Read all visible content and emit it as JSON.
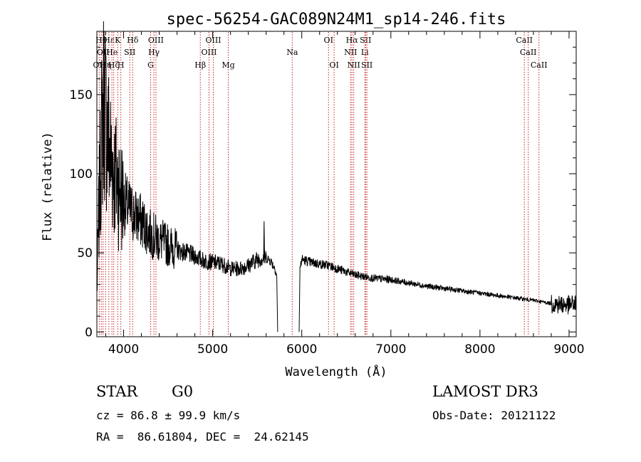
{
  "chart_data": {
    "type": "line",
    "title": "spec-56254-GAC089N24M1_sp14-246.fits",
    "xlabel": "Wavelength (Å)",
    "ylabel": "Flux (relative)",
    "xlim": [
      3700,
      9080
    ],
    "ylim": [
      -3,
      190
    ],
    "xticks": [
      4000,
      5000,
      6000,
      7000,
      8000,
      9000
    ],
    "yticks": [
      0,
      50,
      100,
      150
    ],
    "series": [
      {
        "name": "spectrum",
        "anchors": [
          [
            3700,
            25
          ],
          [
            3720,
            70
          ],
          [
            3750,
            120
          ],
          [
            3780,
            150
          ],
          [
            3800,
            135
          ],
          [
            3850,
            112
          ],
          [
            3900,
            100
          ],
          [
            3950,
            92
          ],
          [
            4000,
            82
          ],
          [
            4100,
            75
          ],
          [
            4200,
            70
          ],
          [
            4300,
            62
          ],
          [
            4400,
            58
          ],
          [
            4500,
            55
          ],
          [
            4600,
            52
          ],
          [
            4700,
            50
          ],
          [
            4800,
            48
          ],
          [
            4900,
            45
          ],
          [
            5000,
            44
          ],
          [
            5100,
            43
          ],
          [
            5200,
            40
          ],
          [
            5300,
            40
          ],
          [
            5400,
            42
          ],
          [
            5500,
            46
          ],
          [
            5600,
            47
          ],
          [
            5650,
            45
          ],
          [
            5700,
            40
          ],
          [
            5720,
            35
          ]
        ]
      },
      {
        "name": "spectrum-red",
        "anchors": [
          [
            5980,
            40
          ],
          [
            6000,
            46
          ],
          [
            6100,
            44
          ],
          [
            6200,
            43
          ],
          [
            6300,
            42
          ],
          [
            6400,
            40
          ],
          [
            6500,
            38
          ],
          [
            6600,
            36
          ],
          [
            6700,
            35
          ],
          [
            6800,
            34
          ],
          [
            7000,
            33
          ],
          [
            7200,
            31
          ],
          [
            7400,
            29
          ],
          [
            7600,
            27.5
          ],
          [
            7800,
            26
          ],
          [
            8000,
            24.5
          ],
          [
            8200,
            23
          ],
          [
            8400,
            21.5
          ],
          [
            8600,
            20
          ],
          [
            8800,
            18
          ],
          [
            9000,
            17
          ],
          [
            9080,
            18
          ]
        ]
      }
    ],
    "features": [
      {
        "x": 5577,
        "y": 70
      },
      {
        "x": 5730,
        "y": 0
      },
      {
        "x": 5970,
        "y": 0
      }
    ],
    "line_markers": [
      {
        "wl": 3727,
        "label": "OII",
        "row": 2
      },
      {
        "wl": 3750,
        "label": "Hθ",
        "row": 0
      },
      {
        "wl": 3770,
        "label": "OII",
        "row": 1
      },
      {
        "wl": 3798,
        "label": "Hη",
        "row": 2
      },
      {
        "wl": 3835,
        "label": "Hε",
        "row": 0
      },
      {
        "wl": 3869,
        "label": "He",
        "row": 1
      },
      {
        "wl": 3889,
        "label": "Hζ",
        "row": 2
      },
      {
        "wl": 3934,
        "label": "K",
        "row": 0
      },
      {
        "wl": 3969,
        "label": "H",
        "row": 2
      },
      {
        "wl": 4070,
        "label": "SII",
        "row": 1
      },
      {
        "wl": 4102,
        "label": "Hδ",
        "row": 0
      },
      {
        "wl": 4304,
        "label": "G",
        "row": 2
      },
      {
        "wl": 4340,
        "label": "Hγ",
        "row": 1
      },
      {
        "wl": 4363,
        "label": "OIII",
        "row": 0
      },
      {
        "wl": 4861,
        "label": "Hβ",
        "row": 2
      },
      {
        "wl": 4959,
        "label": "OIII",
        "row": 1
      },
      {
        "wl": 5007,
        "label": "OIII",
        "row": 0
      },
      {
        "wl": 5175,
        "label": "Mg",
        "row": 2
      },
      {
        "wl": 5893,
        "label": "Na",
        "row": 1
      },
      {
        "wl": 6300,
        "label": "OI",
        "row": 0
      },
      {
        "wl": 6363,
        "label": "OI",
        "row": 2
      },
      {
        "wl": 6548,
        "label": "NII",
        "row": 1
      },
      {
        "wl": 6563,
        "label": "Hα",
        "row": 0
      },
      {
        "wl": 6583,
        "label": "NII",
        "row": 2
      },
      {
        "wl": 6708,
        "label": "Li",
        "row": 1
      },
      {
        "wl": 6716,
        "label": "SII",
        "row": 0
      },
      {
        "wl": 6731,
        "label": "SII",
        "row": 2
      },
      {
        "wl": 8498,
        "label": "CaII",
        "row": 0
      },
      {
        "wl": 8542,
        "label": "CaII",
        "row": 1
      },
      {
        "wl": 8662,
        "label": "CaII",
        "row": 2
      }
    ]
  },
  "info": {
    "class": "STAR",
    "subclass": "G0",
    "survey": "LAMOST DR3",
    "cz": "cz = 86.8 ± 99.9 km/s",
    "obsdate": "Obs-Date: 20121122",
    "radec": "RA =  86.61804, DEC =  24.62145"
  },
  "colors": {
    "marker": "#c62020",
    "axis": "#000000",
    "trace": "#000000"
  }
}
